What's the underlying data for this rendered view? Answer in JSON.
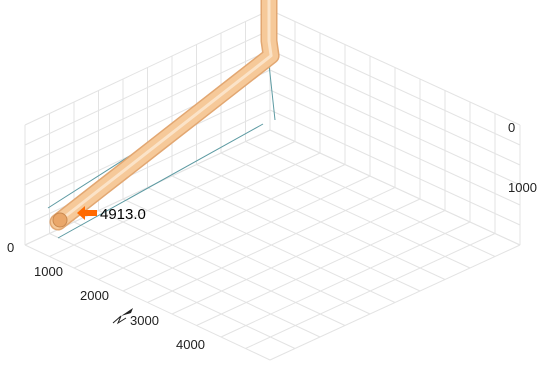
{
  "chart_data": {
    "type": "line",
    "title": "",
    "xlabel": "",
    "ylabel": "",
    "grid": true,
    "axes": {
      "left": {
        "ticks": [
          "0",
          "1000",
          "2000",
          "3000",
          "4000"
        ]
      },
      "right": {
        "ticks": [
          "0",
          "1000"
        ]
      }
    },
    "series": [
      {
        "type": "wellbore-path",
        "x": [
          0,
          0,
          0,
          20,
          200,
          900,
          1800,
          2600,
          3300,
          3900,
          4500,
          4913
        ],
        "y": [
          0,
          0,
          0,
          0,
          0,
          0,
          0,
          0,
          0,
          0,
          0,
          0
        ],
        "z": [
          -4400,
          -3200,
          -2600,
          -2200,
          -1900,
          -1600,
          -1250,
          -900,
          -620,
          -370,
          -130,
          0
        ],
        "color": "#f6c999",
        "edge_color": "#e2a772"
      }
    ],
    "annotation": {
      "text": "4913.0",
      "color": "#ff6a00",
      "value": 4913.0
    },
    "colors": {
      "projection": "#5c9aa2",
      "grid": "#e3e3e3",
      "tube": "#f6c999"
    }
  },
  "icons": {
    "compass": "north-arrow-icon"
  }
}
